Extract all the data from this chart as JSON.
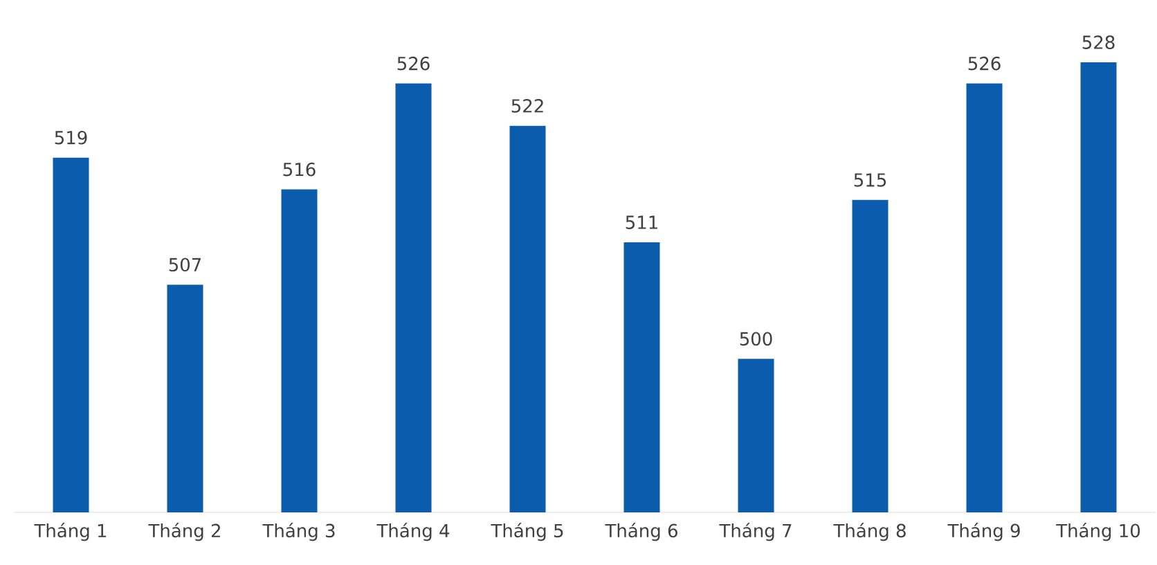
{
  "chart_data": {
    "type": "bar",
    "categories": [
      "Tháng 1",
      "Tháng 2",
      "Tháng 3",
      "Tháng 4",
      "Tháng 5",
      "Tháng 6",
      "Tháng 7",
      "Tháng 8",
      "Tháng 9",
      "Tháng 10"
    ],
    "values": [
      519,
      507,
      516,
      526,
      522,
      511,
      500,
      515,
      526,
      528
    ],
    "color": "#0b5cad",
    "ylim": [
      485.5,
      528
    ],
    "data_labels": true
  }
}
